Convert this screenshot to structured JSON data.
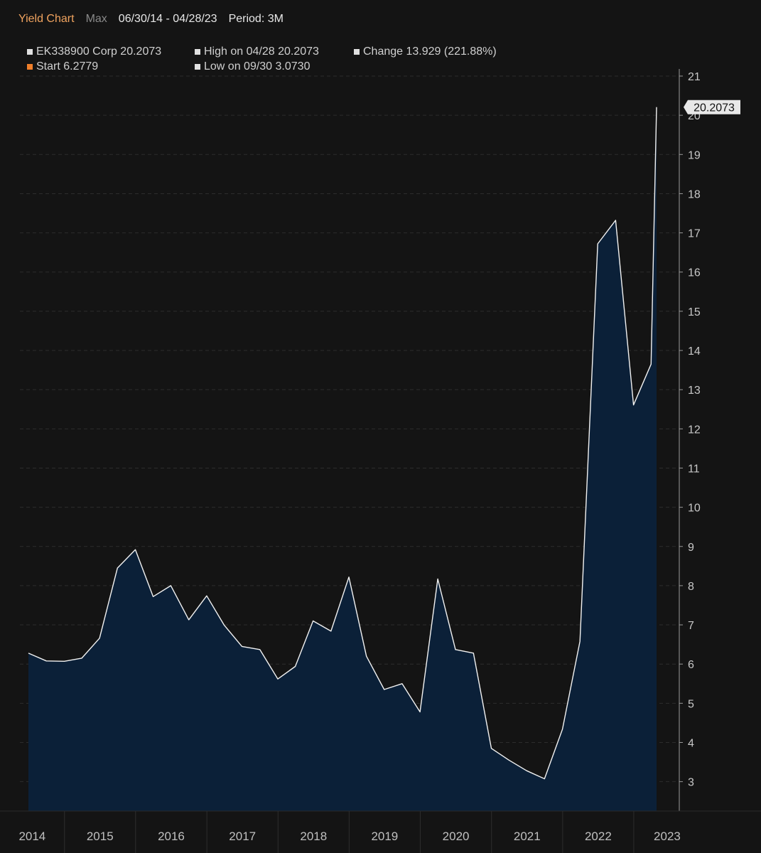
{
  "header": {
    "title": "Yield Chart",
    "max_label": "Max",
    "date_range": "06/30/14 - 04/28/23",
    "period": "Period: 3M"
  },
  "legend": {
    "security": "EK338900 Corp 20.2073",
    "high": "High on 04/28 20.2073",
    "change": "Change 13.929 (221.88%)",
    "start": "Start 6.2779",
    "low": "Low on 09/30 3.0730"
  },
  "colors": {
    "background": "#141414",
    "line": "#f2f2f2",
    "area": "#0b2038",
    "start_marker": "#f07f2a",
    "title": "#f0a35f"
  },
  "chart_data": {
    "type": "area",
    "title": "",
    "xlabel": "",
    "ylabel": "",
    "ylim": [
      2.25,
      21
    ],
    "y_ticks": [
      3,
      4,
      5,
      6,
      7,
      8,
      9,
      10,
      11,
      12,
      13,
      14,
      15,
      16,
      17,
      18,
      19,
      20,
      21
    ],
    "x_tick_labels": [
      "2014",
      "2015",
      "2016",
      "2017",
      "2018",
      "2019",
      "2020",
      "2021",
      "2022",
      "2023"
    ],
    "grid": true,
    "last_value_label": "20.2073",
    "series": [
      {
        "name": "EK338900 Corp",
        "x": [
          "2014-06-30",
          "2014-09-30",
          "2014-12-31",
          "2015-03-31",
          "2015-06-30",
          "2015-09-30",
          "2015-12-31",
          "2016-03-31",
          "2016-06-30",
          "2016-09-30",
          "2016-12-31",
          "2017-03-31",
          "2017-06-30",
          "2017-09-30",
          "2017-12-31",
          "2018-03-31",
          "2018-06-30",
          "2018-09-30",
          "2018-12-31",
          "2019-03-31",
          "2019-06-30",
          "2019-09-30",
          "2019-12-31",
          "2020-03-31",
          "2020-06-30",
          "2020-09-30",
          "2020-12-31",
          "2021-03-31",
          "2021-06-30",
          "2021-09-30",
          "2021-12-31",
          "2022-03-31",
          "2022-06-30",
          "2022-09-30",
          "2022-12-31",
          "2023-03-31",
          "2023-04-28"
        ],
        "values": [
          6.2779,
          6.08,
          6.07,
          6.15,
          6.66,
          8.45,
          8.92,
          7.72,
          8.0,
          7.13,
          7.74,
          6.99,
          6.45,
          6.37,
          5.62,
          5.94,
          7.1,
          6.84,
          8.22,
          6.2,
          5.35,
          5.5,
          4.78,
          8.17,
          6.37,
          6.28,
          3.85,
          3.55,
          3.28,
          3.073,
          4.34,
          6.58,
          16.72,
          17.32,
          12.61,
          13.65,
          20.2073
        ]
      }
    ]
  }
}
